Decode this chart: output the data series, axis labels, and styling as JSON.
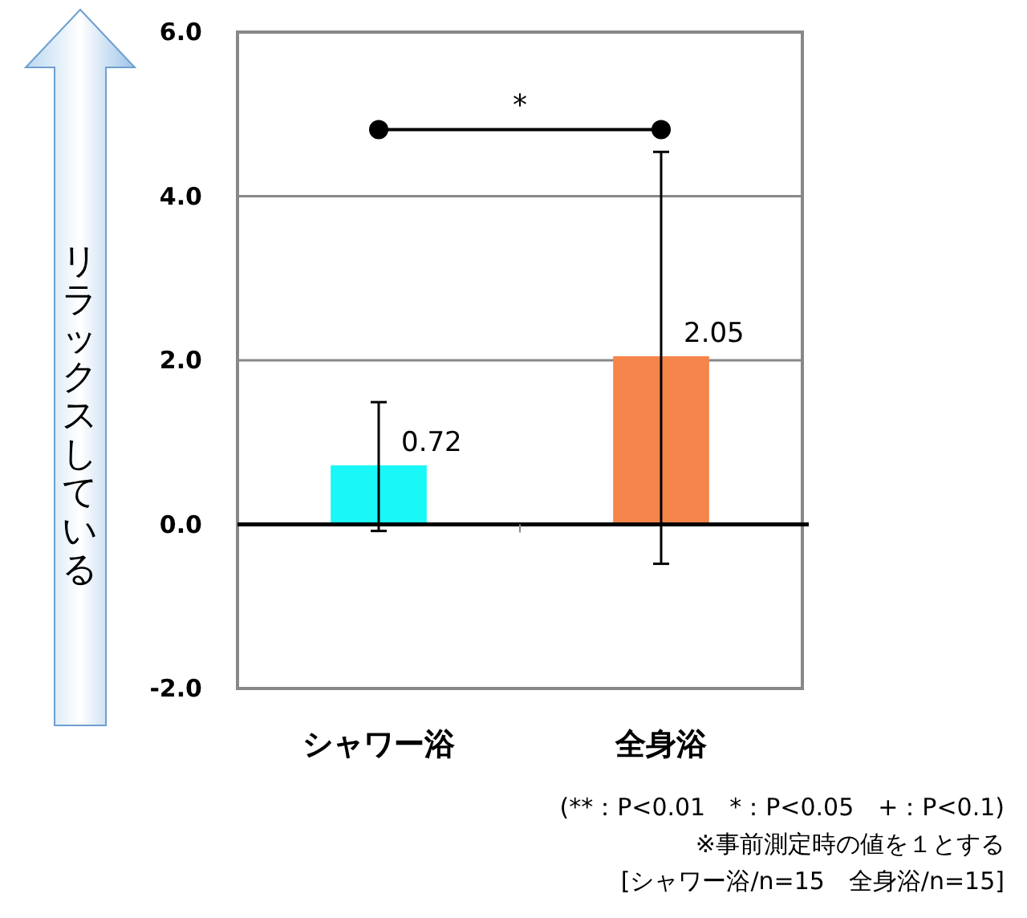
{
  "chart_data": {
    "type": "bar",
    "ylabel": "リラックスしている",
    "categories": [
      "シャワー浴",
      "全身浴"
    ],
    "values": [
      0.72,
      2.05
    ],
    "colors": [
      "#19f7f7",
      "#f5854a"
    ],
    "errors": [
      [
        -0.08,
        1.49
      ],
      [
        -0.48,
        4.54
      ]
    ],
    "data_labels": true,
    "ylim": [
      -2.0,
      6.0
    ],
    "yticks": [
      {
        "value": -2,
        "label": "-2.0"
      },
      {
        "value": 0,
        "label": "0.0"
      },
      {
        "value": 2,
        "label": "2.0"
      },
      {
        "value": 4,
        "label": "4.0"
      },
      {
        "value": 6,
        "label": "6.0"
      }
    ],
    "grid": "y",
    "annotations": [
      "*",
      "(**：P<0.01　*：P<0.05　+：P<0.1)",
      "※事前測定時の値を１とする",
      "[シャワー浴/n=15　全身浴/n=15]"
    ]
  }
}
